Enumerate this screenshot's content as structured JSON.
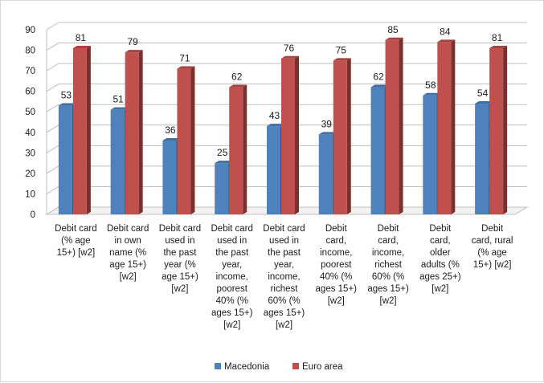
{
  "chart_data": {
    "type": "bar",
    "title": "",
    "xlabel": "",
    "ylabel": "",
    "ylim": [
      0,
      90
    ],
    "yticks": [
      0,
      10,
      20,
      30,
      40,
      50,
      60,
      70,
      80,
      90
    ],
    "grid": true,
    "legend_position": "bottom",
    "categories": [
      [
        "Debit card",
        "(% age",
        "15+) [w2]"
      ],
      [
        "Debit card",
        "in own",
        "name (%",
        "age 15+)",
        "[w2]"
      ],
      [
        "Debit card",
        "used in",
        "the past",
        "year (%",
        "age 15+)",
        "[w2]"
      ],
      [
        "Debit card",
        "used in",
        "the past",
        "year,",
        "income,",
        "poorest",
        "40% (%",
        "ages 15+)",
        "[w2]"
      ],
      [
        "Debit card",
        "used in",
        "the past",
        "year,",
        "income,",
        "richest",
        "60% (%",
        "ages 15+)",
        "[w2]"
      ],
      [
        "Debit",
        "card,",
        "income,",
        "poorest",
        "40% (%",
        "ages 15+)",
        "[w2]"
      ],
      [
        "Debit",
        "card,",
        "income,",
        "richest",
        "60% (%",
        "ages 15+)",
        "[w2]"
      ],
      [
        "Debit",
        "card,",
        "older",
        "adults (%",
        "ages 25+)",
        "[w2]"
      ],
      [
        "Debit",
        "card, rural",
        "(% age",
        "15+) [w2]"
      ]
    ],
    "series": [
      {
        "name": "Macedonia",
        "color": "#4f81bd",
        "values": [
          53,
          51,
          36,
          25,
          43,
          39,
          62,
          58,
          54
        ]
      },
      {
        "name": "Euro area",
        "color": "#c0504d",
        "values": [
          81,
          79,
          71,
          62,
          76,
          75,
          85,
          84,
          81
        ]
      }
    ]
  }
}
